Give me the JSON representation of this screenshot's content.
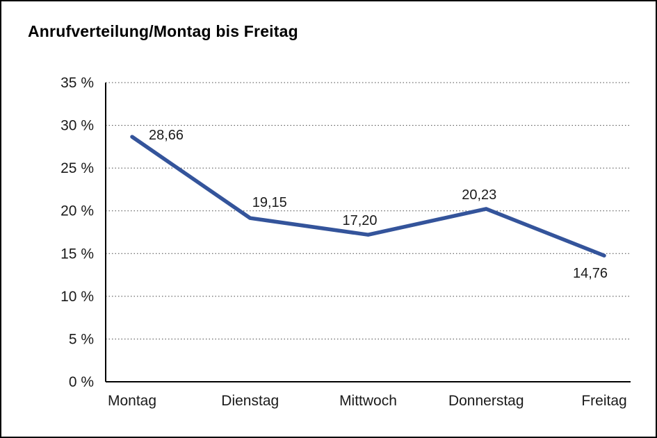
{
  "title": "Anrufverteilung/Montag bis Freitag",
  "colors": {
    "line": "#34549B",
    "grid": "#444444",
    "axis": "#000000",
    "text": "#1a1a1a",
    "background": "#ffffff",
    "border": "#000000"
  },
  "chart_data": {
    "type": "line",
    "title": "Anrufverteilung/Montag bis Freitag",
    "categories": [
      "Montag",
      "Dienstag",
      "Mittwoch",
      "Donnerstag",
      "Freitag"
    ],
    "values": [
      28.66,
      19.15,
      17.2,
      20.23,
      14.76
    ],
    "value_labels": [
      "28,66",
      "19,15",
      "17,20",
      "20,23",
      "14,76"
    ],
    "xlabel": "",
    "ylabel": "",
    "ylim": [
      0,
      35
    ],
    "ytick_step": 5,
    "ytick_suffix": " %",
    "ytick_labels": [
      "0 %",
      "5 %",
      "10 %",
      "15 %",
      "20 %",
      "25 %",
      "30 %",
      "35 %"
    ],
    "grid": "horizontal-dotted",
    "legend": "none"
  }
}
